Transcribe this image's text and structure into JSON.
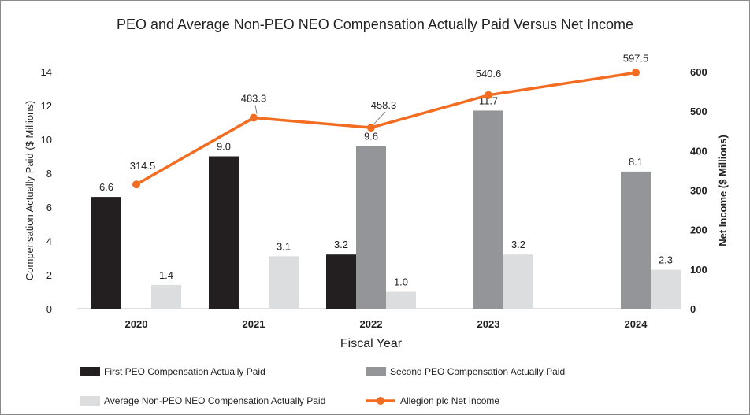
{
  "chart_data": {
    "type": "bar",
    "title": "PEO and Average Non-PEO NEO Compensation Actually Paid Versus Net Income",
    "xlabel": "Fiscal Year",
    "ylabel": "Compensation Actually Paid ($ Millions)",
    "y2label": "Net Income ($ Millions)",
    "ylim": [
      0,
      14
    ],
    "y2lim": [
      0,
      600
    ],
    "yticks": [
      "0",
      "2",
      "4",
      "6",
      "8",
      "10",
      "12",
      "14"
    ],
    "y2ticks": [
      "0",
      "100",
      "200",
      "300",
      "400",
      "500",
      "600"
    ],
    "categories": [
      "2020",
      "2021",
      "2022",
      "2023",
      "2024"
    ],
    "series": [
      {
        "name": "First PEO Compensation Actually Paid",
        "kind": "bar",
        "color": "#231f20",
        "values": [
          6.6,
          9.0,
          3.2,
          null,
          null
        ],
        "labels": [
          "6.6",
          "9.0",
          "3.2",
          "",
          ""
        ]
      },
      {
        "name": "Second PEO Compensation Actually Paid",
        "kind": "bar",
        "color": "#939598",
        "values": [
          null,
          null,
          9.6,
          11.7,
          8.1
        ],
        "labels": [
          "",
          "",
          "9.6",
          "11.7",
          "8.1"
        ]
      },
      {
        "name": "Average Non-PEO NEO Compensation Actually Paid",
        "kind": "bar",
        "color": "#dcdddf",
        "values": [
          1.4,
          3.1,
          1.0,
          3.2,
          2.3
        ],
        "labels": [
          "1.4",
          "3.1",
          "1.0",
          "3.2",
          "2.3"
        ]
      },
      {
        "name": "Allegion plc Net Income",
        "kind": "line",
        "axis": "right",
        "color": "#f26d21",
        "values": [
          314.5,
          483.3,
          458.3,
          540.6,
          597.5
        ],
        "labels": [
          "314.5",
          "483.3",
          "458.3",
          "540.6",
          "597.5"
        ]
      }
    ],
    "legend": "bottom",
    "grid": false
  }
}
